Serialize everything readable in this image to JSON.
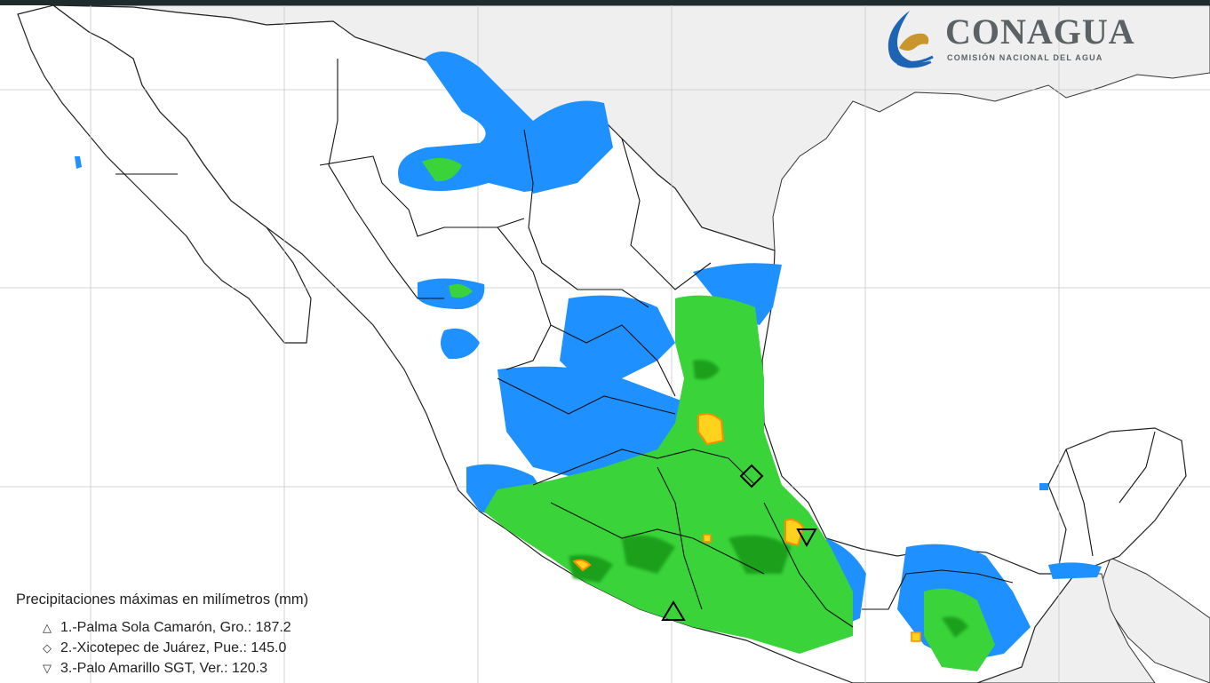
{
  "logo": {
    "name": "CONAGUA",
    "subtitle": "COMISIÓN NACIONAL DEL AGUA"
  },
  "legend": {
    "title": "Precipitaciones máximas en milímetros (mm)",
    "items": [
      {
        "symbol": "triangle-up",
        "glyph": "△",
        "rank": "1.",
        "station": "Palma Sola Camarón, Gro.",
        "value": "187.2",
        "text": "1.-Palma Sola Camarón, Gro.: 187.2"
      },
      {
        "symbol": "diamond",
        "glyph": "◇",
        "rank": "2.",
        "station": "Xicotepec de Juárez, Pue.",
        "value": "145.0",
        "text": "2.-Xicotepec de Juárez, Pue.: 145.0"
      },
      {
        "symbol": "triangle-down",
        "glyph": "▽",
        "rank": "3.",
        "station": "Palo Amarillo SGT, Ver.",
        "value": "120.3",
        "text": "3.-Palo Amarillo SGT, Ver.: 120.3"
      }
    ]
  },
  "colors": {
    "ocean": "#ffffff",
    "land_outside": "#efefef",
    "rain_light": "#1e90ff",
    "rain_moderate": "#3ad43a",
    "rain_heavy": "#1fa01f",
    "rain_very_heavy": "#ffd21e",
    "rain_intense": "#ff8c00",
    "borders": "#000000",
    "gridlines": "#bdbdbd",
    "logo_blue": "#1e64b4",
    "logo_gold": "#c8962d",
    "logo_gray": "#5b6265"
  }
}
